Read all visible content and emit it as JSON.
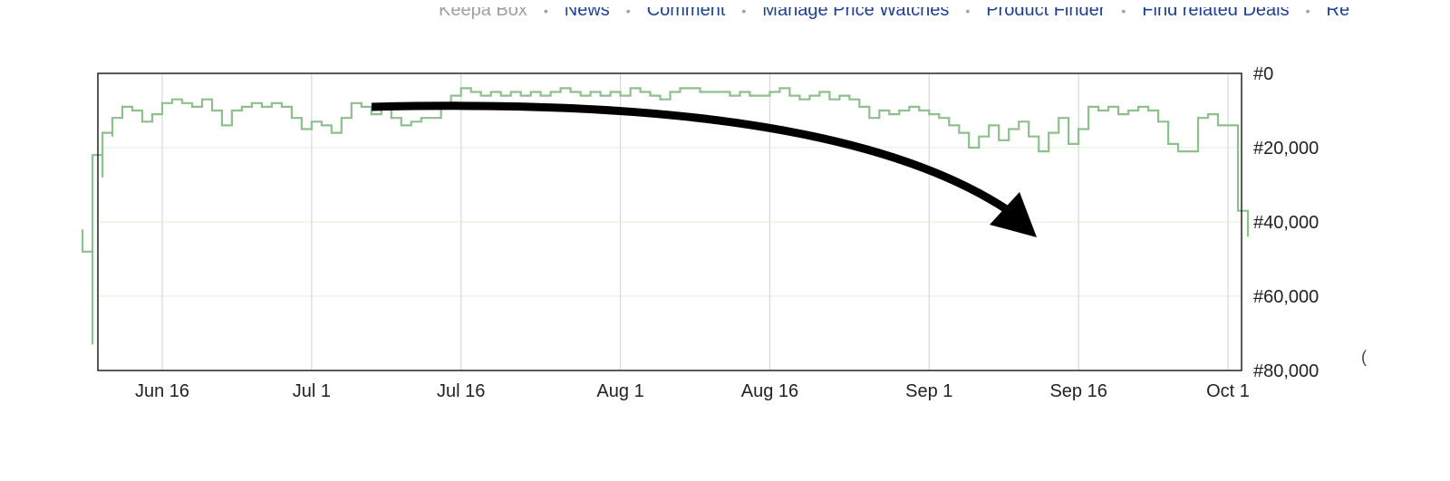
{
  "top_nav": {
    "items": [
      "Keepa Box",
      "News",
      "Comment",
      "Manage Price Watches",
      "Product Finder",
      "Find related Deals",
      "Re"
    ],
    "separator": "•"
  },
  "edge_glyph": "(",
  "colors": {
    "line": "#8fbf8f",
    "grid_h": "#e5f7e5",
    "grid_v": "#d9d9d9",
    "frame": "#222222",
    "arrow": "#000000"
  },
  "chart_data": {
    "type": "line",
    "title": "",
    "xlabel": "",
    "ylabel": "",
    "x_ticks": [
      "Jun 16",
      "Jul 1",
      "Jul 16",
      "Aug 1",
      "Aug 16",
      "Sep 1",
      "Sep 16",
      "Oct 1"
    ],
    "y_ticks": [
      "#0",
      "#20,000",
      "#40,000",
      "#60,000",
      "#80,000"
    ],
    "y_range": [
      0,
      80000
    ],
    "y_inverted": true,
    "step": true,
    "series": [
      {
        "points": [
          [
            "Jun 8",
            42000
          ],
          [
            "Jun 8",
            48000
          ],
          [
            "Jun 9",
            73000
          ],
          [
            "Jun 9",
            22000
          ],
          [
            "Jun 10",
            28000
          ],
          [
            "Jun 10",
            16000
          ],
          [
            "Jun 11",
            17000
          ],
          [
            "Jun 11",
            12000
          ],
          [
            "Jun 12",
            9000
          ],
          [
            "Jun 13",
            10000
          ],
          [
            "Jun 14",
            13000
          ],
          [
            "Jun 15",
            11000
          ],
          [
            "Jun 16",
            8000
          ],
          [
            "Jun 17",
            7000
          ],
          [
            "Jun 18",
            8000
          ],
          [
            "Jun 19",
            9000
          ],
          [
            "Jun 20",
            7000
          ],
          [
            "Jun 21",
            10000
          ],
          [
            "Jun 22",
            14000
          ],
          [
            "Jun 23",
            10000
          ],
          [
            "Jun 24",
            9000
          ],
          [
            "Jun 25",
            8000
          ],
          [
            "Jun 26",
            9000
          ],
          [
            "Jun 27",
            8000
          ],
          [
            "Jun 28",
            9000
          ],
          [
            "Jun 29",
            12000
          ],
          [
            "Jun 30",
            15000
          ],
          [
            "Jul 1",
            13000
          ],
          [
            "Jul 2",
            14000
          ],
          [
            "Jul 3",
            16000
          ],
          [
            "Jul 4",
            12000
          ],
          [
            "Jul 5",
            8000
          ],
          [
            "Jul 6",
            9000
          ],
          [
            "Jul 7",
            11000
          ],
          [
            "Jul 8",
            9000
          ],
          [
            "Jul 9",
            12000
          ],
          [
            "Jul 10",
            14000
          ],
          [
            "Jul 11",
            13000
          ],
          [
            "Jul 12",
            12000
          ],
          [
            "Jul 13",
            12000
          ],
          [
            "Jul 14",
            9000
          ],
          [
            "Jul 15",
            6000
          ],
          [
            "Jul 16",
            4000
          ],
          [
            "Jul 17",
            5000
          ],
          [
            "Jul 18",
            6000
          ],
          [
            "Jul 19",
            5000
          ],
          [
            "Jul 20",
            6000
          ],
          [
            "Jul 21",
            5000
          ],
          [
            "Jul 22",
            6000
          ],
          [
            "Jul 23",
            5000
          ],
          [
            "Jul 24",
            6000
          ],
          [
            "Jul 25",
            5000
          ],
          [
            "Jul 26",
            4000
          ],
          [
            "Jul 27",
            5000
          ],
          [
            "Jul 28",
            6000
          ],
          [
            "Jul 29",
            5000
          ],
          [
            "Jul 30",
            6000
          ],
          [
            "Jul 31",
            5000
          ],
          [
            "Aug 1",
            6000
          ],
          [
            "Aug 2",
            4000
          ],
          [
            "Aug 3",
            5000
          ],
          [
            "Aug 4",
            6000
          ],
          [
            "Aug 5",
            7000
          ],
          [
            "Aug 6",
            5000
          ],
          [
            "Aug 7",
            4000
          ],
          [
            "Aug 8",
            4000
          ],
          [
            "Aug 9",
            5000
          ],
          [
            "Aug 10",
            5000
          ],
          [
            "Aug 11",
            5000
          ],
          [
            "Aug 12",
            6000
          ],
          [
            "Aug 13",
            5000
          ],
          [
            "Aug 14",
            6000
          ],
          [
            "Aug 15",
            6000
          ],
          [
            "Aug 16",
            5000
          ],
          [
            "Aug 17",
            4000
          ],
          [
            "Aug 18",
            6000
          ],
          [
            "Aug 19",
            7000
          ],
          [
            "Aug 20",
            6000
          ],
          [
            "Aug 21",
            5000
          ],
          [
            "Aug 22",
            7000
          ],
          [
            "Aug 23",
            6000
          ],
          [
            "Aug 24",
            7000
          ],
          [
            "Aug 25",
            9000
          ],
          [
            "Aug 26",
            12000
          ],
          [
            "Aug 27",
            10000
          ],
          [
            "Aug 28",
            11000
          ],
          [
            "Aug 29",
            10000
          ],
          [
            "Aug 30",
            9000
          ],
          [
            "Aug 31",
            10000
          ],
          [
            "Sep 1",
            11000
          ],
          [
            "Sep 2",
            12000
          ],
          [
            "Sep 3",
            14000
          ],
          [
            "Sep 4",
            16000
          ],
          [
            "Sep 5",
            20000
          ],
          [
            "Sep 6",
            17000
          ],
          [
            "Sep 7",
            14000
          ],
          [
            "Sep 8",
            18000
          ],
          [
            "Sep 9",
            15000
          ],
          [
            "Sep 10",
            13000
          ],
          [
            "Sep 11",
            17000
          ],
          [
            "Sep 12",
            21000
          ],
          [
            "Sep 13",
            16000
          ],
          [
            "Sep 14",
            12000
          ],
          [
            "Sep 15",
            19000
          ],
          [
            "Sep 16",
            15000
          ],
          [
            "Sep 17",
            9000
          ],
          [
            "Sep 18",
            10000
          ],
          [
            "Sep 19",
            9000
          ],
          [
            "Sep 20",
            11000
          ],
          [
            "Sep 21",
            10000
          ],
          [
            "Sep 22",
            9000
          ],
          [
            "Sep 23",
            10000
          ],
          [
            "Sep 24",
            13000
          ],
          [
            "Sep 25",
            19000
          ],
          [
            "Sep 26",
            21000
          ],
          [
            "Sep 27",
            21000
          ],
          [
            "Sep 28",
            12000
          ],
          [
            "Sep 29",
            11000
          ],
          [
            "Sep 30",
            14000
          ],
          [
            "Oct 1",
            14000
          ],
          [
            "Oct 2",
            21000
          ],
          [
            "Oct 2",
            37000
          ],
          [
            "Oct 3",
            44000
          ]
        ]
      }
    ],
    "grid": true,
    "annotations": [
      {
        "type": "arrow",
        "shape": "curved",
        "direction": "down-right"
      }
    ]
  }
}
